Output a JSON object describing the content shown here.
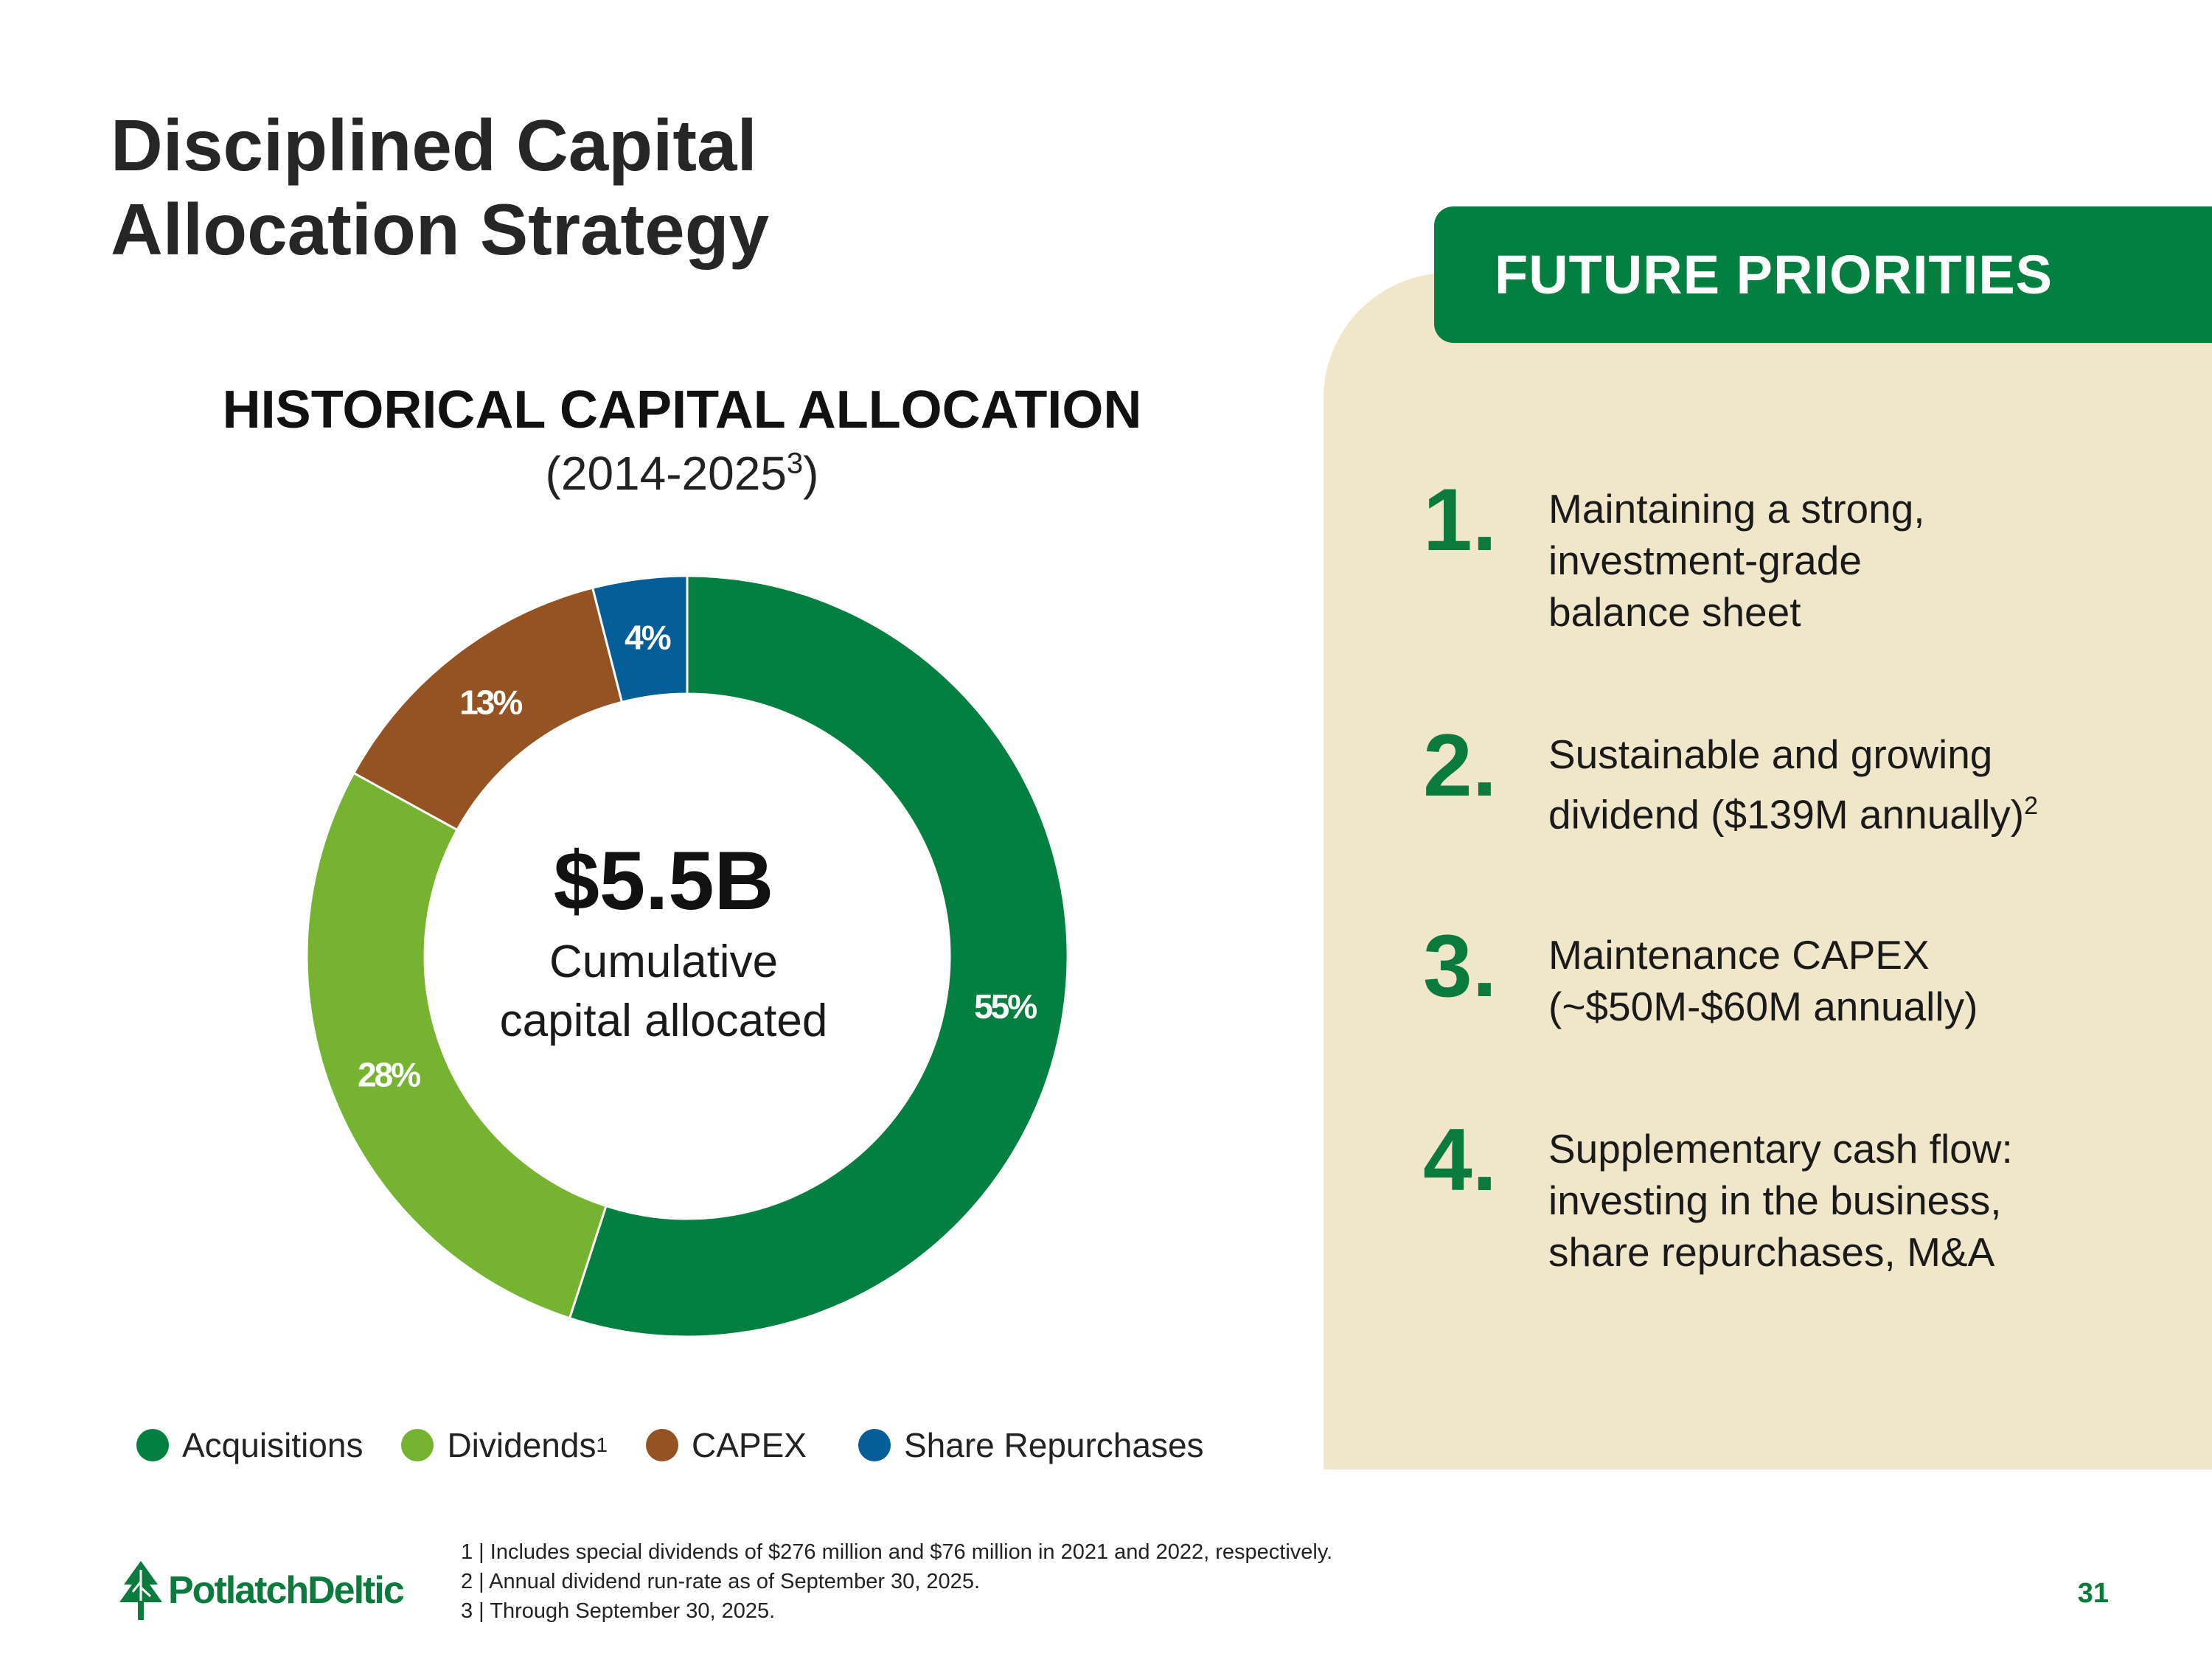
{
  "page": {
    "title_lines": [
      "Disciplined Capital",
      "Allocation Strategy"
    ],
    "page_number": "31"
  },
  "historical": {
    "title": "HISTORICAL CAPITAL ALLOCATION",
    "subtitle_main": "(2014-2025",
    "subtitle_sup": "3",
    "subtitle_close": ")",
    "center_value": "$5.5B",
    "center_label_lines": [
      "Cumulative",
      "capital allocated"
    ]
  },
  "chart_data": {
    "type": "pie",
    "title": "HISTORICAL CAPITAL ALLOCATION",
    "subtitle": "(2014-2025³)",
    "total": "$5.5B",
    "slices": [
      {
        "name": "Acquisitions",
        "value": 55,
        "label": "55%",
        "color": "#038040"
      },
      {
        "name": "Dividends",
        "value": 28,
        "label": "28%",
        "color": "#76b331"
      },
      {
        "name": "CAPEX",
        "value": 13,
        "label": "13%",
        "color": "#955324"
      },
      {
        "name": "Share Repurchases",
        "value": 4,
        "label": "4%",
        "color": "#065e99"
      }
    ],
    "legend_position": "bottom"
  },
  "legend": [
    {
      "label": "Acquisitions",
      "sup": "",
      "color": "#038040"
    },
    {
      "label": "Dividends",
      "sup": "1",
      "color": "#76b331"
    },
    {
      "label": "CAPEX",
      "sup": "",
      "color": "#955324"
    },
    {
      "label": "Share Repurchases",
      "sup": "",
      "color": "#065e99"
    }
  ],
  "priorities": {
    "header": "FUTURE PRIORITIES",
    "items": [
      {
        "number": "1.",
        "lines": [
          "Maintaining a strong,",
          "investment-grade",
          "balance sheet"
        ],
        "sup": ""
      },
      {
        "number": "2.",
        "lines": [
          "Sustainable and growing",
          "dividend ($139M annually)"
        ],
        "sup": "2"
      },
      {
        "number": "3.",
        "lines": [
          "Maintenance CAPEX",
          "(~$50M-$60M annually)"
        ],
        "sup": ""
      },
      {
        "number": "4.",
        "lines": [
          "Supplementary cash flow:",
          "investing in the business,",
          "share repurchases, M&A"
        ],
        "sup": ""
      }
    ]
  },
  "footnotes": [
    "1 | Includes special dividends of $276 million and $76 million in 2021 and 2022, respectively.",
    "2 | Annual dividend run-rate as of September 30, 2025.",
    "3 | Through September 30, 2025."
  ],
  "logo": {
    "text": "PotlatchDeltic",
    "icon": "tree-logo-icon",
    "color": "#0b7a3d"
  },
  "colors": {
    "brand_green": "#038040",
    "panel_beige": "#f0e7cb"
  }
}
